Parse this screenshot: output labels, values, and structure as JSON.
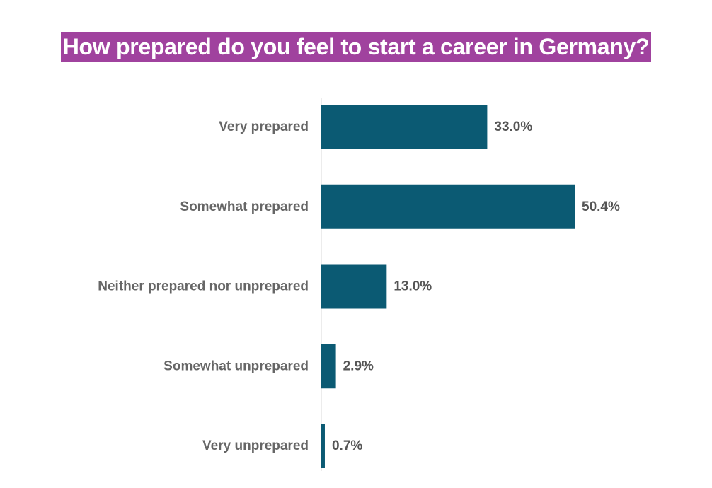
{
  "title": "How prepared do you feel to start a career in Germany?",
  "colors": {
    "title_background": "#a0429e",
    "title_text": "#ffffff",
    "bar": "#0b5a73",
    "axis": "#d9d9d9",
    "category_text": "#666666",
    "value_text": "#555555"
  },
  "chart_data": {
    "type": "bar",
    "orientation": "horizontal",
    "title": "How prepared do you feel to start a career in Germany?",
    "categories": [
      "Very prepared",
      "Somewhat prepared",
      "Neither prepared nor unprepared",
      "Somewhat unprepared",
      "Very unprepared"
    ],
    "values": [
      33.0,
      50.4,
      13.0,
      2.9,
      0.7
    ],
    "value_labels": [
      "33.0%",
      "50.4%",
      "13.0%",
      "2.9%",
      "0.7%"
    ],
    "unit": "%",
    "xlabel": "",
    "ylabel": "",
    "xlim": [
      0,
      100
    ],
    "grid": false,
    "legend": "none"
  }
}
